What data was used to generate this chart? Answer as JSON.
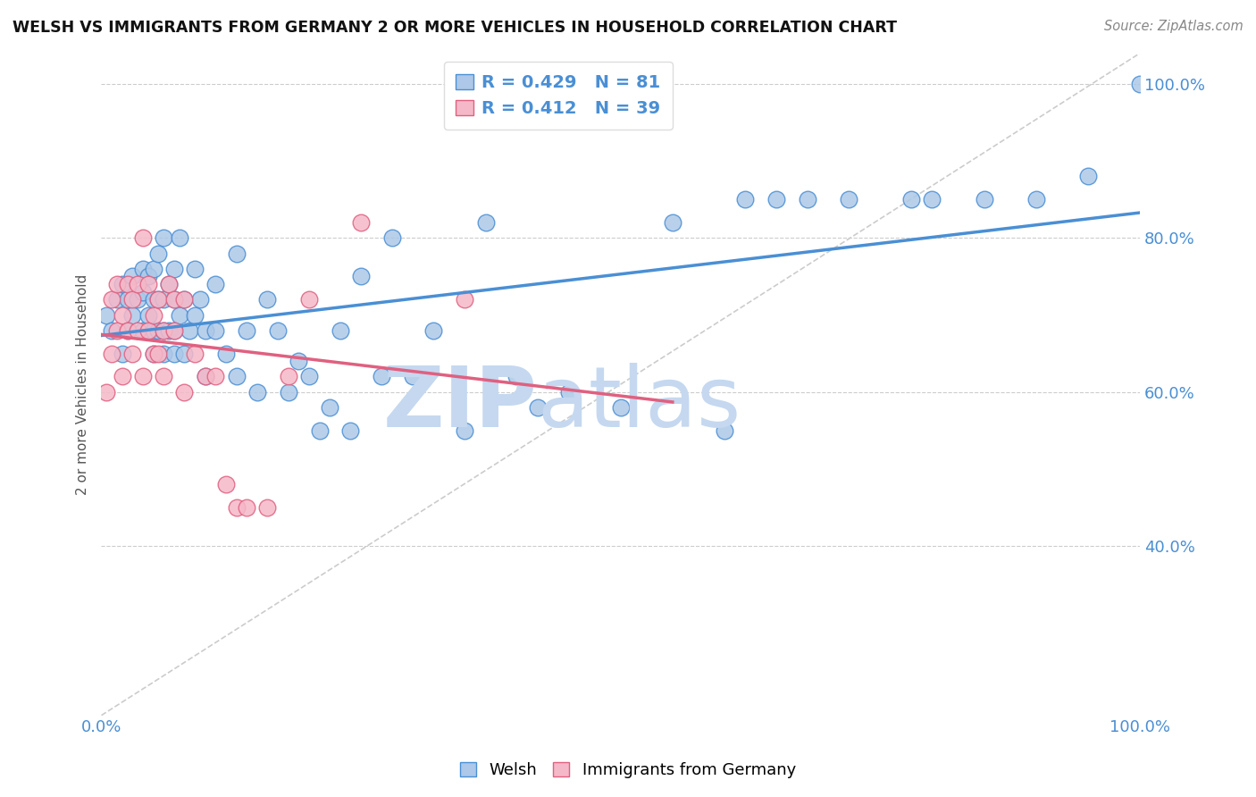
{
  "title": "WELSH VS IMMIGRANTS FROM GERMANY 2 OR MORE VEHICLES IN HOUSEHOLD CORRELATION CHART",
  "source": "Source: ZipAtlas.com",
  "ylabel": "2 or more Vehicles in Household",
  "welsh_R": 0.429,
  "welsh_N": 81,
  "germany_R": 0.412,
  "germany_N": 39,
  "welsh_color": "#adc8e8",
  "germany_color": "#f5b8c8",
  "welsh_line_color": "#4a8fd4",
  "germany_line_color": "#e06080",
  "diagonal_color": "#cccccc",
  "background_color": "#ffffff",
  "xlim": [
    0.0,
    1.0
  ],
  "ylim": [
    0.18,
    1.04
  ],
  "yticks": [
    0.4,
    0.6,
    0.8,
    1.0
  ],
  "xticks": [
    0.0,
    0.2,
    0.4,
    0.6,
    0.8,
    1.0
  ],
  "welsh_x": [
    0.005,
    0.01,
    0.015,
    0.02,
    0.02,
    0.025,
    0.025,
    0.03,
    0.03,
    0.035,
    0.04,
    0.04,
    0.04,
    0.045,
    0.045,
    0.05,
    0.05,
    0.05,
    0.05,
    0.055,
    0.055,
    0.055,
    0.06,
    0.06,
    0.06,
    0.06,
    0.065,
    0.065,
    0.07,
    0.07,
    0.07,
    0.07,
    0.075,
    0.075,
    0.08,
    0.08,
    0.085,
    0.09,
    0.09,
    0.095,
    0.1,
    0.1,
    0.11,
    0.11,
    0.12,
    0.13,
    0.13,
    0.14,
    0.15,
    0.16,
    0.17,
    0.18,
    0.19,
    0.2,
    0.21,
    0.22,
    0.23,
    0.24,
    0.25,
    0.27,
    0.28,
    0.3,
    0.32,
    0.35,
    0.37,
    0.4,
    0.42,
    0.45,
    0.5,
    0.55,
    0.6,
    0.62,
    0.65,
    0.68,
    0.72,
    0.78,
    0.8,
    0.85,
    0.9,
    0.95,
    1.0
  ],
  "welsh_y": [
    0.7,
    0.68,
    0.72,
    0.65,
    0.74,
    0.68,
    0.72,
    0.7,
    0.75,
    0.72,
    0.68,
    0.73,
    0.76,
    0.7,
    0.75,
    0.65,
    0.68,
    0.72,
    0.76,
    0.68,
    0.72,
    0.78,
    0.65,
    0.68,
    0.72,
    0.8,
    0.68,
    0.74,
    0.65,
    0.68,
    0.72,
    0.76,
    0.7,
    0.8,
    0.65,
    0.72,
    0.68,
    0.7,
    0.76,
    0.72,
    0.62,
    0.68,
    0.68,
    0.74,
    0.65,
    0.62,
    0.78,
    0.68,
    0.6,
    0.72,
    0.68,
    0.6,
    0.64,
    0.62,
    0.55,
    0.58,
    0.68,
    0.55,
    0.75,
    0.62,
    0.8,
    0.62,
    0.68,
    0.55,
    0.82,
    0.62,
    0.58,
    0.6,
    0.58,
    0.82,
    0.55,
    0.85,
    0.85,
    0.85,
    0.85,
    0.85,
    0.85,
    0.85,
    0.85,
    0.88,
    1.0
  ],
  "germany_x": [
    0.005,
    0.01,
    0.01,
    0.015,
    0.015,
    0.02,
    0.02,
    0.025,
    0.025,
    0.03,
    0.03,
    0.035,
    0.035,
    0.04,
    0.04,
    0.045,
    0.045,
    0.05,
    0.05,
    0.055,
    0.055,
    0.06,
    0.06,
    0.065,
    0.07,
    0.07,
    0.08,
    0.08,
    0.09,
    0.1,
    0.11,
    0.12,
    0.13,
    0.14,
    0.16,
    0.18,
    0.2,
    0.25,
    0.35
  ],
  "germany_y": [
    0.6,
    0.72,
    0.65,
    0.68,
    0.74,
    0.62,
    0.7,
    0.68,
    0.74,
    0.65,
    0.72,
    0.68,
    0.74,
    0.62,
    0.8,
    0.68,
    0.74,
    0.65,
    0.7,
    0.65,
    0.72,
    0.62,
    0.68,
    0.74,
    0.68,
    0.72,
    0.6,
    0.72,
    0.65,
    0.62,
    0.62,
    0.48,
    0.45,
    0.45,
    0.45,
    0.62,
    0.72,
    0.82,
    0.72
  ]
}
